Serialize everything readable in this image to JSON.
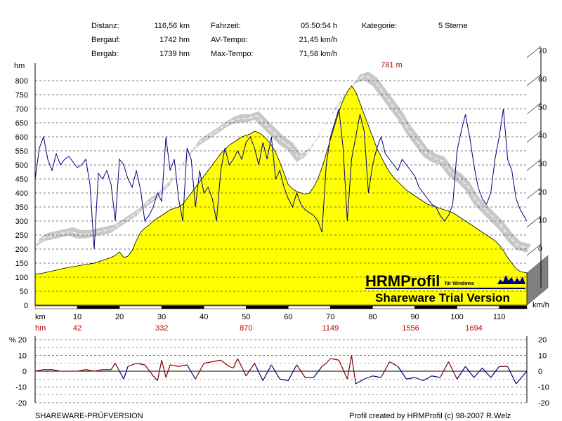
{
  "header": {
    "rows": [
      {
        "l1": "Distanz:",
        "v1": "116,56 km",
        "l2": "Fahrzeit:",
        "v2": "05:50:54 h",
        "l3": "Kategorie:",
        "v3": "5 Sterne"
      },
      {
        "l1": "Bergauf:",
        "v1": "1742 hm",
        "l2": "AV-Tempo:",
        "v2": "21,45 km/h",
        "l3": "",
        "v3": ""
      },
      {
        "l1": "Bergab:",
        "v1": "1739 hm",
        "l2": "Max-Tempo:",
        "v2": "71,58 km/h",
        "l3": "",
        "v3": ""
      }
    ]
  },
  "footer": {
    "left": "SHAREWARE-PRÜFVERSION",
    "right": "Profil created by HRMProfil (c) 98-2007 R.Welz"
  },
  "branding": {
    "logo": "HRMProfil",
    "logo_sub": "für Windows",
    "trial": "Shareware Trial  Version"
  },
  "colors": {
    "altitude_fill": "#ffff00",
    "speed_band": "#c8c8c8",
    "heart_rate": "#000080",
    "gradient_positive": "#800000",
    "gradient_negative": "#000080",
    "hm_marks": "#c00000",
    "grid": "#000000"
  },
  "chart_data": [
    {
      "type": "area",
      "units_left": "hm",
      "units_right": "km/h",
      "units_x": "km",
      "ylim": [
        0,
        800
      ],
      "y_ticks": [
        0,
        50,
        100,
        150,
        200,
        250,
        300,
        350,
        400,
        450,
        500,
        550,
        600,
        650,
        700,
        750,
        800
      ],
      "y2lim": [
        0,
        70
      ],
      "y2_ticks": [
        0,
        10,
        20,
        30,
        40,
        50,
        60,
        70
      ],
      "xlim": [
        0,
        116.56
      ],
      "x_ticks": [
        10,
        20,
        30,
        40,
        50,
        60,
        70,
        80,
        90,
        100,
        110
      ],
      "peak_label": "781 m",
      "hm_axis_label": "hm",
      "hm_marks": [
        {
          "km": 10,
          "value": "42"
        },
        {
          "km": 30,
          "value": "332"
        },
        {
          "km": 50,
          "value": "870"
        },
        {
          "km": 70,
          "value": "1149"
        },
        {
          "km": 89,
          "value": "1556"
        },
        {
          "km": 104,
          "value": "1694"
        }
      ],
      "altitude": {
        "x": [
          0,
          2,
          5,
          8,
          10,
          12,
          14,
          16,
          18,
          19,
          20,
          21,
          22,
          23,
          24,
          25,
          26,
          27,
          28,
          29,
          30,
          31,
          32,
          33,
          34,
          35,
          36,
          37,
          38,
          39,
          40,
          41,
          42,
          43,
          44,
          45,
          46,
          47,
          48,
          49,
          50,
          51,
          52,
          53,
          54,
          55,
          56,
          57,
          58,
          59,
          60,
          61,
          62,
          63,
          64,
          65,
          66,
          67,
          68,
          69,
          70,
          71,
          72,
          73,
          74,
          75,
          76,
          77,
          78,
          79,
          80,
          81,
          82,
          83,
          84,
          85,
          86,
          87,
          88,
          89,
          90,
          91,
          92,
          93,
          94,
          95,
          96,
          97,
          98,
          99,
          100,
          101,
          102,
          103,
          104,
          105,
          106,
          107,
          108,
          109,
          110,
          111,
          112,
          113,
          114,
          115,
          116.56
        ],
        "y": [
          110,
          115,
          125,
          135,
          140,
          145,
          150,
          160,
          170,
          178,
          190,
          170,
          175,
          195,
          230,
          260,
          275,
          285,
          300,
          310,
          320,
          330,
          340,
          345,
          350,
          360,
          380,
          400,
          420,
          440,
          460,
          480,
          500,
          520,
          540,
          555,
          570,
          580,
          590,
          600,
          605,
          610,
          620,
          615,
          605,
          590,
          570,
          545,
          510,
          470,
          430,
          415,
          405,
          400,
          395,
          400,
          420,
          450,
          490,
          540,
          590,
          640,
          690,
          730,
          760,
          781,
          760,
          720,
          680,
          640,
          600,
          560,
          530,
          500,
          475,
          455,
          440,
          425,
          410,
          400,
          390,
          380,
          370,
          360,
          355,
          350,
          345,
          340,
          335,
          330,
          320,
          310,
          300,
          290,
          280,
          270,
          260,
          250,
          240,
          230,
          215,
          195,
          170,
          150,
          130,
          120,
          115
        ]
      },
      "speed": {
        "x": [
          0,
          2,
          5,
          8,
          10,
          12,
          15,
          18,
          20,
          22,
          24,
          26,
          28,
          30,
          32,
          34,
          36,
          38,
          40,
          42,
          44,
          46,
          48,
          50,
          52,
          54,
          56,
          58,
          60,
          62,
          64,
          66,
          68,
          70,
          72,
          74,
          76,
          78,
          80,
          82,
          84,
          86,
          88,
          90,
          92,
          94,
          96,
          98,
          100,
          102,
          104,
          106,
          108,
          110,
          112,
          114,
          116.56
        ],
        "y": [
          2,
          4,
          5,
          6,
          5,
          5,
          6,
          7,
          9,
          11,
          13,
          16,
          18,
          21,
          24,
          29,
          33,
          37,
          39,
          41,
          43,
          45,
          46,
          46,
          47,
          44,
          41,
          38,
          36,
          32,
          34,
          38,
          43,
          48,
          52,
          56,
          60,
          61,
          59,
          55,
          51,
          47,
          42,
          38,
          34,
          32,
          31,
          27,
          25,
          22,
          17,
          14,
          11,
          8,
          4,
          1,
          0
        ]
      },
      "heart_rate": {
        "x": [
          0,
          1,
          2,
          3,
          4,
          5,
          6,
          7,
          8,
          9,
          10,
          11,
          12,
          13,
          14,
          15,
          16,
          17,
          18,
          19,
          20,
          21,
          22,
          23,
          24,
          25,
          26,
          27,
          28,
          29,
          30,
          31,
          32,
          33,
          34,
          35,
          36,
          37,
          38,
          39,
          40,
          41,
          42,
          43,
          44,
          45,
          46,
          47,
          48,
          49,
          50,
          51,
          52,
          53,
          54,
          55,
          56,
          57,
          58,
          59,
          60,
          61,
          62,
          63,
          64,
          65,
          66,
          67,
          68,
          69,
          70,
          71,
          72,
          73,
          74,
          75,
          76,
          77,
          78,
          79,
          80,
          81,
          82,
          83,
          84,
          85,
          86,
          87,
          88,
          89,
          90,
          91,
          92,
          93,
          94,
          95,
          96,
          97,
          98,
          99,
          100,
          101,
          102,
          103,
          104,
          105,
          106,
          107,
          108,
          109,
          110,
          111,
          112,
          113,
          114,
          115,
          116.56
        ],
        "y": [
          450,
          560,
          600,
          520,
          480,
          540,
          500,
          520,
          530,
          510,
          490,
          500,
          520,
          430,
          200,
          470,
          450,
          480,
          430,
          300,
          520,
          500,
          450,
          420,
          480,
          410,
          300,
          320,
          350,
          400,
          370,
          600,
          480,
          520,
          380,
          300,
          560,
          520,
          350,
          480,
          400,
          420,
          380,
          300,
          480,
          560,
          500,
          520,
          550,
          520,
          580,
          600,
          560,
          500,
          580,
          520,
          600,
          450,
          480,
          420,
          380,
          350,
          400,
          360,
          340,
          330,
          320,
          300,
          260,
          500,
          600,
          650,
          700,
          560,
          300,
          520,
          600,
          680,
          620,
          400,
          500,
          560,
          600,
          540,
          520,
          500,
          480,
          520,
          500,
          480,
          460,
          420,
          400,
          380,
          360,
          350,
          320,
          300,
          320,
          360,
          550,
          620,
          680,
          600,
          500,
          420,
          380,
          360,
          400,
          520,
          600,
          700,
          520,
          480,
          380,
          340,
          300
        ]
      }
    },
    {
      "type": "line",
      "units_left": "%",
      "ylim": [
        -20,
        20
      ],
      "y_ticks": [
        -20,
        -10,
        0,
        10,
        20
      ],
      "xlim": [
        0,
        116.56
      ],
      "gradient": {
        "x": [
          0,
          2,
          4,
          6,
          8,
          10,
          12,
          14,
          16,
          18,
          19,
          20,
          21,
          22,
          24,
          26,
          28,
          29,
          30,
          31,
          32,
          34,
          36,
          38,
          40,
          42,
          44,
          46,
          47,
          48,
          50,
          52,
          54,
          56,
          58,
          60,
          62,
          64,
          66,
          68,
          69,
          70,
          72,
          74,
          75,
          76,
          78,
          80,
          82,
          84,
          86,
          88,
          90,
          92,
          94,
          96,
          98,
          100,
          102,
          104,
          106,
          108,
          110,
          112,
          114,
          116.56
        ],
        "y": [
          0,
          1,
          1,
          0,
          0,
          0,
          1,
          0,
          1,
          1,
          5,
          0,
          -5,
          3,
          5,
          4,
          -3,
          -6,
          7,
          -4,
          4,
          3,
          4,
          -5,
          5,
          6,
          7,
          3,
          2,
          8,
          -3,
          5,
          -6,
          4,
          -5,
          -6,
          4,
          -4,
          -4,
          3,
          5,
          8,
          7,
          -5,
          10,
          -8,
          -5,
          -3,
          -4,
          6,
          3,
          -5,
          -4,
          -6,
          -3,
          -4,
          6,
          -5,
          3,
          -4,
          2,
          -4,
          3,
          3,
          -8,
          0
        ]
      }
    }
  ]
}
